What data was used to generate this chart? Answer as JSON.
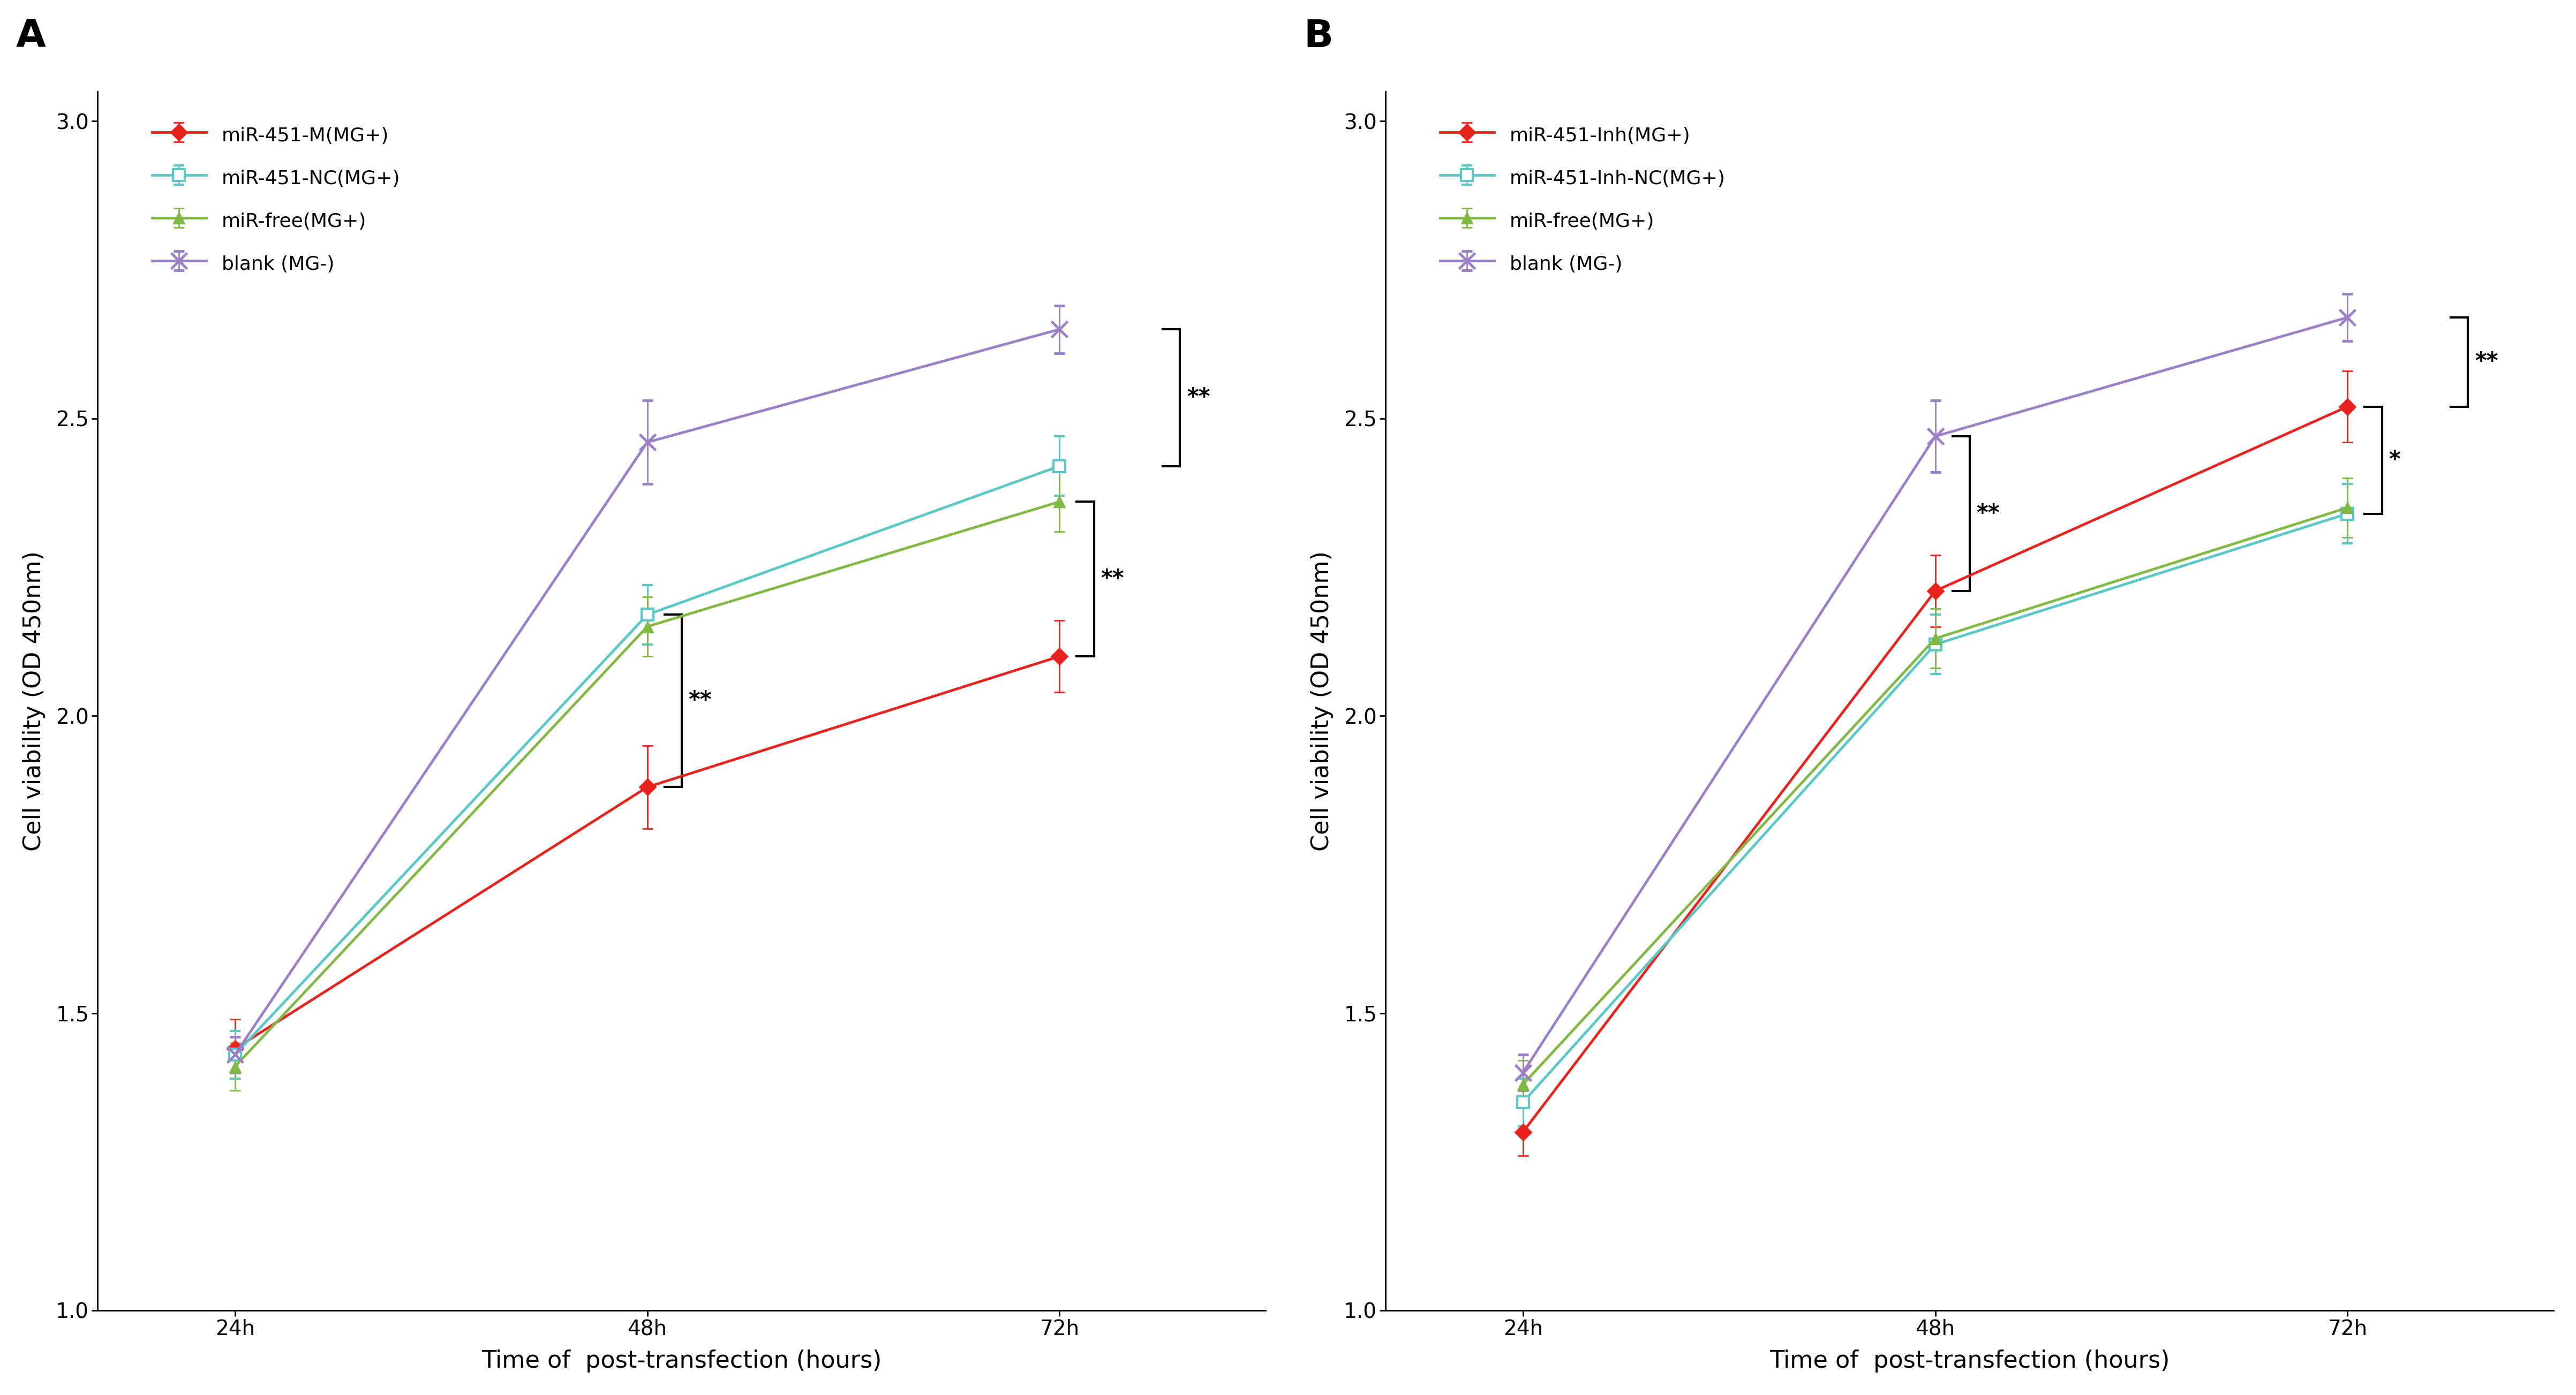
{
  "panel_A": {
    "label": "A",
    "series": [
      {
        "name": "miR-451-M(MG+)",
        "color": "#e8231e",
        "marker": "D",
        "x": [
          24,
          48,
          72
        ],
        "y": [
          1.44,
          1.88,
          2.1
        ],
        "yerr": [
          0.05,
          0.07,
          0.06
        ]
      },
      {
        "name": "miR-451-NC(MG+)",
        "color": "#5bc8c8",
        "marker": "s",
        "x": [
          24,
          48,
          72
        ],
        "y": [
          1.43,
          2.17,
          2.42
        ],
        "yerr": [
          0.04,
          0.05,
          0.05
        ]
      },
      {
        "name": "miR-free(MG+)",
        "color": "#82b944",
        "marker": "^",
        "x": [
          24,
          48,
          72
        ],
        "y": [
          1.41,
          2.15,
          2.36
        ],
        "yerr": [
          0.04,
          0.05,
          0.05
        ]
      },
      {
        "name": "blank (MG-)",
        "color": "#9b7fc7",
        "marker": "x",
        "x": [
          24,
          48,
          72
        ],
        "y": [
          1.43,
          2.46,
          2.65
        ],
        "yerr": [
          0.03,
          0.07,
          0.04
        ]
      }
    ]
  },
  "panel_B": {
    "label": "B",
    "series": [
      {
        "name": "miR-451-Inh(MG+)",
        "color": "#e8231e",
        "marker": "D",
        "x": [
          24,
          48,
          72
        ],
        "y": [
          1.3,
          2.21,
          2.52
        ],
        "yerr": [
          0.04,
          0.06,
          0.06
        ]
      },
      {
        "name": "miR-451-Inh-NC(MG+)",
        "color": "#5bc8c8",
        "marker": "s",
        "x": [
          24,
          48,
          72
        ],
        "y": [
          1.35,
          2.12,
          2.34
        ],
        "yerr": [
          0.04,
          0.05,
          0.05
        ]
      },
      {
        "name": "miR-free(MG+)",
        "color": "#82b944",
        "marker": "^",
        "x": [
          24,
          48,
          72
        ],
        "y": [
          1.38,
          2.13,
          2.35
        ],
        "yerr": [
          0.04,
          0.05,
          0.05
        ]
      },
      {
        "name": "blank (MG-)",
        "color": "#9b7fc7",
        "marker": "x",
        "x": [
          24,
          48,
          72
        ],
        "y": [
          1.4,
          2.47,
          2.67
        ],
        "yerr": [
          0.03,
          0.06,
          0.04
        ]
      }
    ]
  },
  "ylim": [
    1.0,
    3.05
  ],
  "yticks": [
    1.0,
    1.5,
    2.0,
    2.5,
    3.0
  ],
  "xlabel": "Time of  post-transfection (hours)",
  "ylabel": "Cell viability (OD 450nm)",
  "xtick_labels": [
    "24h",
    "48h",
    "72h"
  ],
  "xtick_vals": [
    24,
    48,
    72
  ],
  "background_color": "#ffffff",
  "linewidth": 3.5,
  "markersize": 18,
  "tick_fontsize": 28,
  "label_fontsize": 32,
  "legend_fontsize": 26,
  "panel_label_fontsize": 52,
  "sig_fontsize": 30
}
